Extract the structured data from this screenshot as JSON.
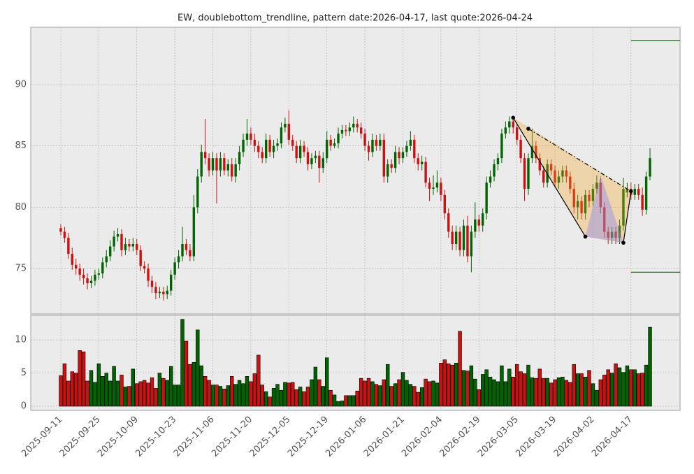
{
  "chart_data": {
    "type": "candlestick",
    "title": "EW, doublebottom_trendline, pattern date:2026-04-17, last quote:2026-04-24",
    "x": [
      "2025-09-11",
      "2025-09-12",
      "2025-09-15",
      "2025-09-16",
      "2025-09-17",
      "2025-09-18",
      "2025-09-19",
      "2025-09-22",
      "2025-09-23",
      "2025-09-24",
      "2025-09-25",
      "2025-09-26",
      "2025-09-29",
      "2025-09-30",
      "2025-10-01",
      "2025-10-02",
      "2025-10-03",
      "2025-10-06",
      "2025-10-07",
      "2025-10-08",
      "2025-10-09",
      "2025-10-10",
      "2025-10-13",
      "2025-10-14",
      "2025-10-15",
      "2025-10-16",
      "2025-10-17",
      "2025-10-20",
      "2025-10-21",
      "2025-10-22",
      "2025-10-23",
      "2025-10-24",
      "2025-10-27",
      "2025-10-28",
      "2025-10-29",
      "2025-10-30",
      "2025-10-31",
      "2025-11-03",
      "2025-11-04",
      "2025-11-05",
      "2025-11-06",
      "2025-11-07",
      "2025-11-10",
      "2025-11-11",
      "2025-11-12",
      "2025-11-13",
      "2025-11-14",
      "2025-11-17",
      "2025-11-18",
      "2025-11-19",
      "2025-11-20",
      "2025-11-21",
      "2025-11-24",
      "2025-11-25",
      "2025-11-26",
      "2025-11-28",
      "2025-12-01",
      "2025-12-02",
      "2025-12-03",
      "2025-12-04",
      "2025-12-05",
      "2025-12-08",
      "2025-12-09",
      "2025-12-10",
      "2025-12-11",
      "2025-12-12",
      "2025-12-15",
      "2025-12-16",
      "2025-12-17",
      "2025-12-18",
      "2025-12-19",
      "2025-12-22",
      "2025-12-23",
      "2025-12-24",
      "2025-12-26",
      "2025-12-29",
      "2025-12-30",
      "2025-12-31",
      "2026-01-02",
      "2026-01-05",
      "2026-01-06",
      "2026-01-07",
      "2026-01-08",
      "2026-01-09",
      "2026-01-12",
      "2026-01-13",
      "2026-01-14",
      "2026-01-15",
      "2026-01-16",
      "2026-01-20",
      "2026-01-21",
      "2026-01-22",
      "2026-01-23",
      "2026-01-26",
      "2026-01-27",
      "2026-01-28",
      "2026-01-29",
      "2026-01-30",
      "2026-02-02",
      "2026-02-03",
      "2026-02-04",
      "2026-02-05",
      "2026-02-06",
      "2026-02-09",
      "2026-02-10",
      "2026-02-11",
      "2026-02-12",
      "2026-02-13",
      "2026-02-17",
      "2026-02-18",
      "2026-02-19",
      "2026-02-20",
      "2026-02-23",
      "2026-02-24",
      "2026-02-25",
      "2026-02-26",
      "2026-02-27",
      "2026-03-02",
      "2026-03-03",
      "2026-03-04",
      "2026-03-05",
      "2026-03-06",
      "2026-03-09",
      "2026-03-10",
      "2026-03-11",
      "2026-03-12",
      "2026-03-13",
      "2026-03-16",
      "2026-03-17",
      "2026-03-18",
      "2026-03-19",
      "2026-03-20",
      "2026-03-23",
      "2026-03-24",
      "2026-03-25",
      "2026-03-26",
      "2026-03-27",
      "2026-03-30",
      "2026-03-31",
      "2026-04-01",
      "2026-04-02",
      "2026-04-06",
      "2026-04-07",
      "2026-04-08",
      "2026-04-09",
      "2026-04-10",
      "2026-04-13",
      "2026-04-14",
      "2026-04-15",
      "2026-04-16",
      "2026-04-17",
      "2026-04-20",
      "2026-04-21",
      "2026-04-22",
      "2026-04-23",
      "2026-04-24"
    ],
    "open": [
      78.3,
      78.0,
      77.5,
      76.2,
      75.3,
      75.0,
      74.5,
      74.2,
      73.8,
      74.0,
      74.5,
      74.6,
      75.5,
      76.0,
      76.8,
      77.6,
      77.8,
      76.5,
      77.0,
      76.8,
      77.0,
      76.5,
      75.2,
      75.0,
      74.0,
      73.5,
      73.0,
      73.1,
      72.9,
      73.2,
      74.5,
      75.5,
      76.0,
      77.0,
      76.5,
      76.0,
      80.0,
      82.5,
      84.5,
      84.0,
      83.0,
      84.0,
      83.0,
      84.0,
      83.0,
      83.5,
      82.5,
      83.5,
      84.5,
      85.5,
      86.0,
      85.5,
      85.0,
      84.5,
      84.0,
      85.5,
      84.5,
      85.0,
      85.2,
      86.5,
      86.8,
      85.5,
      85.0,
      84.0,
      85.0,
      84.5,
      83.5,
      84.0,
      84.2,
      83.2,
      84.0,
      85.5,
      85.0,
      85.2,
      86.0,
      86.3,
      86.2,
      86.5,
      86.8,
      86.5,
      86.0,
      85.0,
      84.5,
      85.5,
      85.0,
      85.5,
      82.5,
      83.5,
      83.2,
      84.5,
      84.0,
      84.5,
      85.0,
      85.5,
      84.0,
      83.5,
      83.7,
      82.0,
      81.5,
      81.6,
      82.0,
      81.0,
      79.5,
      78.0,
      77.0,
      78.0,
      76.5,
      78.5,
      76.0,
      78.0,
      79.0,
      78.5,
      79.5,
      82.0,
      82.5,
      83.5,
      84.0,
      86.0,
      86.5,
      87.0,
      86.5,
      85.5,
      84.0,
      81.5,
      84.0,
      85.0,
      84.0,
      83.0,
      82.0,
      83.5,
      83.0,
      82.0,
      82.5,
      83.0,
      82.5,
      81.5,
      80.0,
      80.5,
      79.5,
      81.0,
      80.5,
      81.5,
      82.0,
      80.0,
      78.0,
      77.5,
      78.0,
      77.5,
      78.5,
      81.2,
      81.5,
      81.0,
      81.5,
      81.0,
      79.8,
      82.5
    ],
    "high": [
      78.6,
      78.4,
      77.9,
      76.7,
      75.8,
      75.4,
      75.0,
      74.6,
      74.4,
      74.9,
      75.0,
      75.9,
      76.5,
      77.3,
      78.1,
      78.3,
      78.2,
      77.5,
      77.4,
      77.5,
      77.4,
      76.9,
      75.6,
      75.4,
      74.4,
      73.9,
      73.5,
      73.5,
      73.6,
      74.9,
      75.9,
      76.5,
      78.4,
      77.4,
      77.0,
      81.0,
      83.1,
      85.1,
      87.2,
      84.4,
      84.5,
      84.4,
      84.5,
      84.4,
      83.9,
      84.0,
      84.0,
      85.0,
      86.0,
      87.2,
      86.5,
      86.0,
      85.4,
      84.9,
      86.0,
      85.9,
      85.5,
      85.6,
      86.9,
      87.3,
      87.9,
      85.9,
      85.4,
      85.5,
      85.4,
      84.9,
      84.4,
      84.6,
      84.6,
      84.5,
      86.2,
      85.9,
      85.6,
      86.5,
      86.7,
      86.7,
      86.9,
      87.4,
      87.2,
      86.9,
      86.4,
      85.4,
      86.0,
      85.9,
      86.0,
      86.0,
      83.9,
      83.9,
      85.0,
      84.9,
      84.9,
      85.4,
      86.2,
      85.9,
      84.4,
      84.2,
      84.1,
      82.4,
      82.6,
      83.0,
      82.4,
      81.4,
      79.9,
      78.5,
      78.5,
      78.4,
      79.0,
      79.3,
      78.5,
      80.4,
      79.4,
      79.9,
      82.5,
      83.0,
      83.9,
      84.4,
      86.4,
      87.0,
      87.4,
      87.3,
      86.9,
      85.9,
      84.4,
      84.4,
      86.4,
      85.4,
      84.4,
      83.4,
      83.9,
      83.9,
      83.4,
      83.0,
      83.4,
      83.4,
      82.9,
      82.0,
      81.0,
      80.9,
      81.4,
      81.4,
      81.9,
      82.6,
      82.4,
      80.4,
      78.4,
      78.4,
      78.4,
      79.0,
      82.4,
      82.0,
      82.0,
      81.9,
      81.9,
      81.6,
      82.9,
      84.8
    ],
    "low": [
      77.7,
      77.1,
      75.8,
      74.9,
      74.5,
      74.0,
      73.7,
      73.3,
      73.4,
      73.6,
      74.1,
      74.2,
      75.1,
      75.6,
      76.4,
      77.2,
      76.0,
      76.1,
      76.4,
      76.4,
      76.1,
      74.8,
      74.6,
      73.5,
      73.0,
      72.5,
      72.6,
      72.4,
      72.5,
      72.8,
      74.1,
      75.0,
      75.6,
      76.1,
      75.6,
      75.6,
      79.5,
      82.0,
      83.5,
      82.5,
      82.6,
      80.3,
      82.5,
      82.6,
      82.5,
      82.1,
      82.0,
      83.0,
      84.1,
      85.0,
      85.1,
      84.5,
      84.0,
      83.6,
      83.6,
      84.1,
      84.0,
      84.6,
      84.8,
      86.1,
      85.1,
      84.6,
      83.6,
      83.6,
      84.1,
      83.0,
      83.1,
      83.6,
      82.0,
      82.8,
      83.6,
      84.6,
      84.8,
      84.8,
      85.6,
      85.8,
      85.8,
      86.1,
      86.1,
      85.6,
      84.6,
      83.8,
      84.1,
      84.6,
      84.6,
      82.0,
      82.0,
      82.8,
      82.8,
      83.5,
      83.6,
      84.1,
      84.6,
      83.6,
      83.0,
      83.0,
      81.6,
      80.5,
      81.0,
      81.2,
      80.5,
      79.0,
      77.5,
      76.5,
      76.5,
      76.0,
      76.0,
      75.5,
      74.7,
      77.5,
      78.0,
      78.0,
      79.0,
      81.6,
      82.1,
      83.0,
      83.6,
      85.6,
      86.0,
      86.0,
      85.1,
      83.6,
      80.5,
      81.0,
      83.6,
      83.6,
      82.6,
      81.6,
      81.6,
      82.6,
      81.6,
      81.5,
      82.0,
      82.0,
      81.1,
      79.5,
      79.0,
      79.0,
      79.0,
      80.0,
      80.1,
      81.1,
      79.5,
      77.5,
      77.0,
      77.0,
      77.0,
      77.0,
      78.1,
      80.8,
      80.6,
      80.6,
      80.6,
      79.3,
      79.4,
      82.2
    ],
    "close": [
      78.0,
      77.5,
      76.2,
      75.3,
      75.0,
      74.5,
      74.2,
      73.8,
      74.0,
      74.5,
      74.6,
      75.5,
      76.0,
      76.8,
      77.6,
      77.8,
      76.5,
      77.0,
      76.8,
      77.0,
      76.5,
      75.2,
      75.0,
      74.0,
      73.5,
      73.0,
      73.1,
      72.9,
      73.2,
      74.5,
      75.5,
      76.0,
      77.0,
      76.5,
      76.0,
      80.0,
      82.5,
      84.5,
      84.0,
      83.0,
      84.0,
      83.0,
      84.0,
      83.0,
      83.5,
      82.5,
      83.5,
      84.5,
      85.5,
      86.0,
      85.5,
      85.0,
      84.5,
      84.0,
      85.5,
      84.5,
      85.0,
      85.2,
      86.5,
      86.8,
      85.5,
      85.0,
      84.0,
      85.0,
      84.5,
      83.5,
      84.0,
      84.2,
      83.2,
      84.0,
      85.5,
      85.0,
      85.2,
      86.0,
      86.3,
      86.2,
      86.5,
      86.8,
      86.5,
      86.0,
      85.0,
      84.5,
      85.5,
      85.0,
      85.5,
      82.5,
      83.5,
      83.2,
      84.5,
      84.0,
      84.5,
      85.0,
      85.5,
      84.0,
      83.5,
      83.7,
      82.0,
      81.5,
      81.6,
      82.0,
      81.0,
      79.5,
      78.0,
      77.0,
      78.0,
      76.5,
      78.5,
      76.0,
      78.0,
      79.0,
      78.5,
      79.5,
      82.0,
      82.5,
      83.5,
      84.0,
      86.0,
      86.5,
      87.0,
      86.5,
      85.5,
      84.0,
      81.5,
      84.0,
      85.0,
      84.0,
      83.0,
      82.0,
      83.5,
      83.0,
      82.0,
      82.5,
      83.0,
      82.5,
      81.5,
      80.0,
      80.5,
      79.5,
      81.0,
      80.5,
      81.5,
      82.0,
      80.0,
      78.0,
      77.5,
      78.0,
      77.5,
      78.5,
      81.5,
      81.5,
      81.0,
      81.5,
      81.0,
      79.8,
      82.5,
      84.0
    ],
    "volume": [
      4.6,
      6.4,
      3.8,
      5.2,
      5.0,
      8.4,
      8.2,
      3.8,
      5.4,
      3.6,
      6.4,
      4.5,
      5.0,
      3.8,
      6.0,
      3.8,
      4.7,
      2.9,
      3.0,
      5.6,
      3.4,
      3.7,
      3.9,
      3.5,
      4.3,
      2.7,
      5.0,
      4.2,
      3.9,
      6.0,
      3.2,
      3.2,
      13.1,
      9.8,
      6.3,
      6.6,
      11.5,
      6.1,
      4.5,
      3.9,
      3.2,
      3.2,
      3.0,
      2.6,
      3.1,
      4.5,
      3.3,
      3.9,
      3.4,
      4.5,
      3.7,
      4.9,
      7.7,
      3.2,
      2.2,
      1.4,
      2.7,
      3.3,
      2.4,
      3.6,
      3.5,
      3.6,
      2.5,
      2.9,
      2.2,
      2.9,
      4.0,
      5.9,
      4.0,
      3.0,
      7.3,
      2.4,
      1.7,
      0.7,
      0.8,
      1.6,
      1.6,
      1.6,
      2.3,
      4.2,
      3.8,
      4.2,
      3.7,
      3.3,
      3.1,
      4.0,
      6.3,
      3.0,
      3.4,
      4.0,
      5.1,
      3.9,
      3.3,
      3.0,
      2.1,
      2.8,
      4.1,
      3.7,
      3.8,
      3.5,
      6.5,
      7.0,
      6.4,
      6.2,
      6.5,
      11.3,
      5.4,
      5.3,
      6.1,
      4.1,
      2.5,
      4.8,
      5.5,
      4.4,
      4.0,
      3.7,
      6.1,
      3.7,
      5.6,
      4.4,
      6.3,
      5.2,
      4.9,
      6.2,
      4.3,
      4.2,
      5.6,
      4.2,
      4.2,
      3.5,
      4.0,
      4.3,
      4.4,
      3.9,
      3.6,
      6.3,
      4.9,
      4.9,
      4.4,
      5.4,
      3.4,
      2.4,
      4.0,
      4.7,
      5.5,
      5.0,
      6.4,
      5.8,
      5.1,
      6.1,
      5.5,
      5.5,
      4.9,
      5.0,
      6.2,
      11.9
    ],
    "up_color": "#006400",
    "down_color": "#cc1111",
    "ylim": [
      71.3,
      94.67
    ],
    "yticks": [
      75,
      80,
      85,
      90
    ],
    "volume_ylim": [
      -0.63,
      13.7
    ],
    "volume_yticks": [
      0,
      5,
      10
    ],
    "xticks": [
      "2025-09-11",
      "2025-09-25",
      "2025-10-09",
      "2025-10-23",
      "2025-11-06",
      "2025-11-20",
      "2025-12-05",
      "2025-12-19",
      "2026-01-06",
      "2026-01-21",
      "2026-02-04",
      "2026-02-19",
      "2026-03-05",
      "2026-03-19",
      "2026-04-02",
      "2026-04-17"
    ],
    "grid": true,
    "fills": [
      {
        "color": "#f5a623",
        "alpha": 0.32,
        "points": [
          {
            "x": "2026-03-04",
            "y": 87.3
          },
          {
            "x": "2026-04-17",
            "y": 81.3
          },
          {
            "x": "2026-04-15",
            "y": 77.1
          },
          {
            "x": "2026-03-31",
            "y": 77.6
          }
        ]
      },
      {
        "color": "#7777ff",
        "alpha": 0.35,
        "points": [
          {
            "x": "2026-03-31",
            "y": 77.6
          },
          {
            "x": "2026-04-07",
            "y": 82.6
          },
          {
            "x": "2026-04-15",
            "y": 77.1
          }
        ]
      }
    ],
    "trendlines": [
      {
        "style": "solid",
        "points": [
          {
            "x": "2026-03-04",
            "y": 87.3
          },
          {
            "x": "2026-03-31",
            "y": 77.6
          }
        ]
      },
      {
        "style": "dashdot",
        "points": [
          {
            "x": "2026-03-10",
            "y": 86.4
          },
          {
            "x": "2026-04-17",
            "y": 81.3
          }
        ]
      },
      {
        "style": "solid",
        "points": [
          {
            "x": "2026-04-15",
            "y": 77.1
          },
          {
            "x": "2026-04-17",
            "y": 81.3
          }
        ]
      }
    ],
    "markers": [
      {
        "x": "2026-03-04",
        "y": 87.3
      },
      {
        "x": "2026-03-10",
        "y": 86.4
      },
      {
        "x": "2026-03-31",
        "y": 77.6
      },
      {
        "x": "2026-04-15",
        "y": 77.1
      },
      {
        "x": "2026-04-17",
        "y": 81.3
      }
    ],
    "levels_color": "#008000",
    "levels": [
      {
        "start": "2026-04-17",
        "value": 93.6
      },
      {
        "start": "2026-04-17",
        "value": 74.7
      }
    ]
  }
}
